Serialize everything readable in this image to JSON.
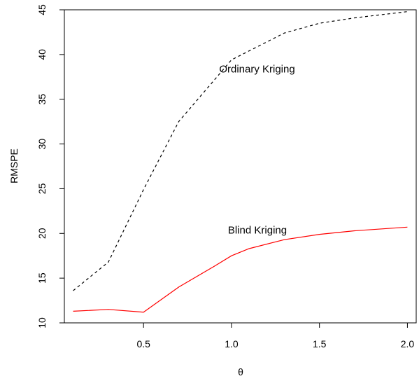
{
  "chart_data": {
    "type": "line",
    "title": "",
    "xlabel": "θ",
    "ylabel": "RMSPE",
    "xlim": [
      0.05,
      2.05
    ],
    "ylim": [
      10,
      45
    ],
    "xticks": [
      0.5,
      1.0,
      1.5,
      2.0
    ],
    "xtick_labels": [
      "0.5",
      "1.0",
      "1.5",
      "2.0"
    ],
    "yticks": [
      10,
      15,
      20,
      25,
      30,
      35,
      40,
      45
    ],
    "ytick_labels": [
      "10",
      "15",
      "20",
      "25",
      "30",
      "35",
      "40",
      "45"
    ],
    "grid": false,
    "legend": "none",
    "x": [
      0.1,
      0.3,
      0.5,
      0.7,
      0.9,
      1.0,
      1.1,
      1.3,
      1.5,
      1.7,
      2.0
    ],
    "series": [
      {
        "name": "Ordinary Kriging",
        "color": "#000000",
        "style": "dashed",
        "values": [
          13.6,
          16.8,
          24.9,
          32.5,
          37.1,
          39.4,
          40.4,
          42.4,
          43.5,
          44.1,
          44.8
        ]
      },
      {
        "name": "Blind Kriging",
        "color": "#ff0000",
        "style": "solid",
        "values": [
          11.3,
          11.5,
          11.2,
          14.0,
          16.3,
          17.5,
          18.3,
          19.3,
          19.9,
          20.3,
          20.7
        ]
      }
    ],
    "annotations": [
      {
        "text": "Ordinary Kriging",
        "x": 0.93,
        "y": 38.0
      },
      {
        "text": "Blind Kriging",
        "x": 0.98,
        "y": 20.0
      }
    ]
  }
}
